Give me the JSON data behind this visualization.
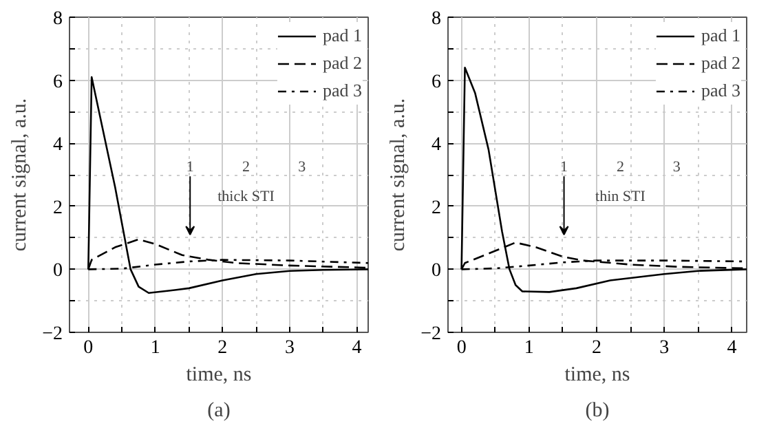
{
  "chart_data": [
    {
      "type": "line",
      "xlabel": "time, ns",
      "ylabel": "current signal, a.u.",
      "xlim": [
        -0.28,
        4.17
      ],
      "ylim": [
        -2,
        8
      ],
      "xticks": [
        0,
        {
          "value": 0.5,
          "label": null
        },
        1,
        {
          "value": 1.5,
          "label": null
        },
        2,
        {
          "value": 2.5,
          "label": null
        },
        3,
        {
          "value": 3.5,
          "label": null
        },
        4
      ],
      "yticks": [
        {
          "value": -2,
          "label": "−2"
        },
        {
          "value": -1,
          "label": null
        },
        0,
        {
          "value": 1,
          "label": null
        },
        2,
        {
          "value": 3,
          "label": null
        },
        4,
        {
          "value": 5,
          "label": null
        },
        6,
        {
          "value": 7,
          "label": null
        },
        8
      ],
      "grid": true,
      "legend": "top right",
      "series": [
        {
          "name": "pad 1",
          "color": "#000000",
          "line_style": "solid",
          "x": [
            0,
            0.05,
            0.2,
            0.4,
            0.63,
            0.75,
            0.9,
            1.2,
            1.5,
            2.0,
            2.5,
            3.0,
            3.5,
            4.17
          ],
          "values": [
            0,
            6.1,
            4.6,
            2.6,
            0,
            -0.55,
            -0.75,
            -0.68,
            -0.6,
            -0.35,
            -0.15,
            -0.05,
            -0.02,
            0
          ]
        },
        {
          "name": "pad 2",
          "color": "#000000",
          "line_style": "dashed",
          "x": [
            0,
            0.05,
            0.4,
            0.75,
            1.0,
            1.4,
            1.8,
            2.2,
            3.0,
            4.17
          ],
          "values": [
            0,
            0.3,
            0.7,
            0.95,
            0.8,
            0.45,
            0.3,
            0.2,
            0.12,
            0.05
          ]
        },
        {
          "name": "pad 3",
          "color": "#000000",
          "line_style": "dashdot",
          "x": [
            0,
            0.5,
            1.0,
            1.5,
            2.0,
            3.0,
            4.17
          ],
          "values": [
            0,
            0.02,
            0.15,
            0.25,
            0.3,
            0.28,
            0.2
          ]
        }
      ],
      "annotations": [
        "1",
        "2",
        "3",
        "thick STI",
        "(a)"
      ]
    },
    {
      "type": "line",
      "xlabel": "time, ns",
      "ylabel": "current signal, a.u.",
      "xlim": [
        -0.2,
        4.22
      ],
      "ylim": [
        -2,
        8
      ],
      "xticks": [
        0,
        {
          "value": 0.5,
          "label": null
        },
        1,
        {
          "value": 1.5,
          "label": null
        },
        2,
        {
          "value": 2.5,
          "label": null
        },
        3,
        {
          "value": 3.5,
          "label": null
        },
        4
      ],
      "yticks": [
        {
          "value": -2,
          "label": "−2"
        },
        {
          "value": -1,
          "label": null
        },
        0,
        {
          "value": 1,
          "label": null
        },
        2,
        {
          "value": 3,
          "label": null
        },
        4,
        {
          "value": 5,
          "label": null
        },
        6,
        {
          "value": 7,
          "label": null
        },
        8
      ],
      "grid": true,
      "legend": "top right",
      "series": [
        {
          "name": "pad 1",
          "color": "#000000",
          "line_style": "solid",
          "x": [
            0,
            0.05,
            0.2,
            0.4,
            0.6,
            0.71,
            0.8,
            0.9,
            1.3,
            1.7,
            2.2,
            3.0,
            3.5,
            4.22
          ],
          "values": [
            0,
            6.4,
            5.6,
            3.8,
            1.2,
            0,
            -0.5,
            -0.7,
            -0.72,
            -0.6,
            -0.35,
            -0.15,
            -0.05,
            0
          ]
        },
        {
          "name": "pad 2",
          "color": "#000000",
          "line_style": "dashed",
          "x": [
            0,
            0.05,
            0.4,
            0.8,
            1.1,
            1.5,
            1.8,
            2.5,
            3.2,
            4.22
          ],
          "values": [
            0,
            0.2,
            0.5,
            0.85,
            0.7,
            0.4,
            0.28,
            0.15,
            0.08,
            0.03
          ]
        },
        {
          "name": "pad 3",
          "color": "#000000",
          "line_style": "dashdot",
          "x": [
            0,
            0.5,
            1.0,
            1.5,
            2.0,
            3.0,
            4.22
          ],
          "values": [
            0,
            0.03,
            0.12,
            0.22,
            0.28,
            0.28,
            0.25
          ]
        }
      ],
      "annotations": [
        "1",
        "2",
        "3",
        "thin STI",
        "(b)"
      ]
    }
  ]
}
